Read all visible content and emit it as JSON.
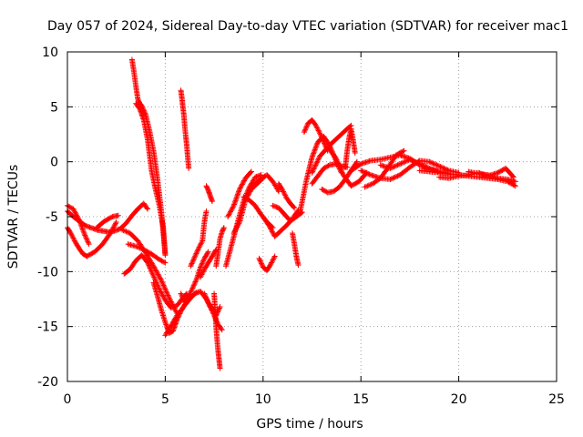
{
  "chart_data": {
    "type": "scatter",
    "title": "Day 057 of 2024, Sidereal Day-to-day VTEC variation (SDTVAR) for receiver mac1",
    "xlabel": "GPS time / hours",
    "ylabel": "SDTVAR / TECUs",
    "xlim": [
      0,
      25
    ],
    "ylim": [
      -20,
      10
    ],
    "xticks": [
      0,
      5,
      10,
      15,
      20,
      25
    ],
    "yticks": [
      -20,
      -15,
      -10,
      -5,
      0,
      5,
      10
    ],
    "xtick_labels": [
      "0",
      "5",
      "10",
      "15",
      "20",
      "25"
    ],
    "ytick_labels": [
      "-20",
      "-15",
      "-10",
      "-5",
      "0",
      "5",
      "10"
    ],
    "grid": true,
    "marker": "+",
    "series": [
      {
        "name": "SDTVAR",
        "color": "#ff0000",
        "tracks": [
          {
            "x": [
              0.0,
              0.3,
              0.6,
              0.9,
              1.2,
              1.5,
              1.8,
              2.1,
              2.4,
              2.7,
              3.0,
              3.3,
              3.6,
              3.9,
              4.1
            ],
            "y": [
              -4.5,
              -5.0,
              -5.4,
              -5.8,
              -6.0,
              -6.2,
              -6.3,
              -6.4,
              -6.3,
              -6.1,
              -5.6,
              -4.9,
              -4.3,
              -3.8,
              -4.3
            ]
          },
          {
            "x": [
              0.0,
              0.2,
              0.4,
              0.6,
              0.8,
              1.0
            ],
            "y": [
              -6.0,
              -6.6,
              -7.3,
              -7.9,
              -8.4,
              -8.6
            ]
          },
          {
            "x": [
              0.0,
              0.3,
              0.6,
              0.9,
              1.1
            ],
            "y": [
              -4.0,
              -4.3,
              -5.3,
              -6.7,
              -7.5
            ]
          },
          {
            "x": [
              1.0,
              1.4,
              1.8,
              2.2,
              2.5
            ],
            "y": [
              -8.6,
              -8.2,
              -7.5,
              -6.5,
              -5.5
            ]
          },
          {
            "x": [
              1.5,
              1.9,
              2.3,
              2.6
            ],
            "y": [
              -6.0,
              -5.4,
              -5.0,
              -4.9
            ]
          },
          {
            "x": [
              2.9,
              3.2,
              3.5,
              3.8,
              4.1,
              4.4,
              4.7,
              5.0,
              5.3,
              5.6,
              5.9,
              6.1
            ],
            "y": [
              -10.2,
              -9.8,
              -9.0,
              -8.5,
              -9.2,
              -10.4,
              -11.6,
              -12.6,
              -13.3,
              -13.1,
              -12.4,
              -12.0
            ]
          },
          {
            "x": [
              2.8,
              3.2,
              3.6,
              4.0,
              4.4,
              4.8,
              5.2,
              5.6
            ],
            "y": [
              -6.2,
              -6.5,
              -7.2,
              -8.3,
              -9.5,
              -10.8,
              -12.4,
              -13.8
            ]
          },
          {
            "x": [
              3.1,
              3.5,
              3.9,
              4.3,
              4.7,
              5.0
            ],
            "y": [
              -7.5,
              -7.7,
              -8.0,
              -8.4,
              -8.9,
              -9.2
            ]
          },
          {
            "x": [
              3.3,
              3.4,
              3.5,
              3.6,
              3.7,
              3.8,
              4.0,
              4.2,
              4.4,
              4.6,
              4.8,
              5.0
            ],
            "y": [
              9.3,
              8.2,
              6.9,
              5.7,
              5.3,
              5.1,
              4.3,
              2.8,
              1.0,
              -1.5,
              -4.5,
              -8.4
            ]
          },
          {
            "x": [
              3.5,
              3.7,
              3.9,
              4.1,
              4.3,
              4.5,
              4.7,
              4.9,
              5.0
            ],
            "y": [
              5.3,
              4.8,
              3.8,
              2.0,
              -0.8,
              -2.5,
              -4.0,
              -6.0,
              -8.5
            ]
          },
          {
            "x": [
              4.4,
              4.6,
              4.8,
              5.0,
              5.2,
              5.4,
              5.6,
              5.8,
              6.0,
              6.2,
              6.4,
              6.6
            ],
            "y": [
              -11.0,
              -12.2,
              -13.5,
              -14.6,
              -15.6,
              -15.4,
              -14.4,
              -13.6,
              -13.0,
              -12.6,
              -12.2,
              -11.9
            ]
          },
          {
            "x": [
              5.0,
              5.3,
              5.6,
              5.9,
              6.2,
              6.5,
              6.8,
              7.1,
              7.4,
              7.7,
              7.9
            ],
            "y": [
              -15.8,
              -14.9,
              -14.0,
              -13.3,
              -12.6,
              -12.0,
              -11.8,
              -12.5,
              -13.6,
              -14.8,
              -15.3
            ]
          },
          {
            "x": [
              5.8,
              5.85,
              5.9,
              5.95,
              6.0,
              6.05,
              6.1,
              6.15,
              6.2
            ],
            "y": [
              6.5,
              5.8,
              5.0,
              4.3,
              3.2,
              2.3,
              1.5,
              0.4,
              -0.6
            ]
          },
          {
            "x": [
              5.8,
              6.0,
              6.2,
              6.4,
              6.6,
              6.8,
              7.0,
              7.2
            ],
            "y": [
              -12.0,
              -12.8,
              -12.2,
              -11.5,
              -10.7,
              -9.6,
              -8.8,
              -8.2
            ]
          },
          {
            "x": [
              6.3,
              6.5,
              6.7,
              6.9,
              7.0,
              7.1
            ],
            "y": [
              -9.5,
              -8.7,
              -7.9,
              -7.2,
              -5.5,
              -4.5
            ]
          },
          {
            "x": [
              6.8,
              7.0,
              7.2,
              7.4,
              7.6
            ],
            "y": [
              -10.5,
              -9.8,
              -9.2,
              -8.6,
              -8.0
            ]
          },
          {
            "x": [
              7.0,
              7.2,
              7.4,
              7.6,
              7.8
            ],
            "y": [
              -12.0,
              -12.8,
              -13.4,
              -14.0,
              -13.2
            ]
          },
          {
            "x": [
              7.1,
              7.2,
              7.3,
              7.4
            ],
            "y": [
              -2.2,
              -2.6,
              -3.1,
              -3.6
            ]
          },
          {
            "x": [
              7.5,
              7.55,
              7.6,
              7.65,
              7.7,
              7.75,
              7.8
            ],
            "y": [
              -12.0,
              -13.5,
              -15.0,
              -16.2,
              -17.2,
              -18.0,
              -18.8
            ]
          },
          {
            "x": [
              7.6,
              7.7,
              7.8,
              7.9,
              8.0
            ],
            "y": [
              -9.5,
              -8.3,
              -7.0,
              -6.4,
              -6.0
            ]
          },
          {
            "x": [
              8.1,
              8.4,
              8.7,
              9.0,
              9.3,
              9.6,
              9.9
            ],
            "y": [
              -9.5,
              -7.5,
              -5.5,
              -3.6,
              -2.3,
              -1.4,
              -1.2
            ]
          },
          {
            "x": [
              8.2,
              8.5,
              8.8,
              9.1,
              9.4
            ],
            "y": [
              -5.0,
              -4.0,
              -2.5,
              -1.5,
              -0.9
            ]
          },
          {
            "x": [
              8.5,
              8.8,
              9.1,
              9.4,
              9.7,
              10.0
            ],
            "y": [
              -6.5,
              -5.5,
              -3.5,
              -2.5,
              -2.0,
              -1.5
            ]
          },
          {
            "x": [
              9.0,
              9.3,
              9.6,
              9.9,
              10.2,
              10.5
            ],
            "y": [
              -3.2,
              -3.5,
              -4.0,
              -4.8,
              -5.5,
              -6.0
            ]
          },
          {
            "x": [
              9.3,
              9.6,
              9.9,
              10.2,
              10.5,
              10.8
            ],
            "y": [
              -2.5,
              -2.0,
              -1.5,
              -1.2,
              -1.8,
              -2.7
            ]
          },
          {
            "x": [
              9.8,
              10.0,
              10.2,
              10.4,
              10.6
            ],
            "y": [
              -8.8,
              -9.6,
              -9.9,
              -9.3,
              -8.6
            ]
          },
          {
            "x": [
              10.0,
              10.3,
              10.6,
              10.9,
              11.2,
              11.5,
              11.8
            ],
            "y": [
              -5.0,
              -5.8,
              -6.8,
              -6.3,
              -5.8,
              -5.2,
              -4.4
            ]
          },
          {
            "x": [
              10.5,
              10.8,
              11.1,
              11.4,
              11.7,
              12.0
            ],
            "y": [
              -4.0,
              -4.2,
              -4.8,
              -5.4,
              -5.0,
              -4.6
            ]
          },
          {
            "x": [
              10.8,
              11.0,
              11.2,
              11.4,
              11.6
            ],
            "y": [
              -2.0,
              -2.6,
              -3.3,
              -3.8,
              -4.2
            ]
          },
          {
            "x": [
              11.5,
              11.6,
              11.7,
              11.8
            ],
            "y": [
              -6.5,
              -7.5,
              -8.6,
              -9.4
            ]
          },
          {
            "x": [
              11.9,
              12.2,
              12.5,
              12.8,
              13.1,
              13.4,
              13.7,
              14.0
            ],
            "y": [
              -4.5,
              -1.8,
              0.4,
              1.8,
              2.3,
              1.5,
              0.2,
              -1.0
            ]
          },
          {
            "x": [
              12.1,
              12.3,
              12.5,
              12.7,
              12.9,
              13.1,
              13.3
            ],
            "y": [
              2.7,
              3.5,
              3.8,
              3.3,
              2.6,
              1.8,
              1.0
            ]
          },
          {
            "x": [
              12.5,
              12.8,
              13.1,
              13.4,
              13.7,
              14.0,
              14.3
            ],
            "y": [
              -2.0,
              -1.3,
              -0.6,
              -0.3,
              -0.2,
              -0.4,
              -0.5
            ]
          },
          {
            "x": [
              12.5,
              12.9,
              13.3,
              13.7,
              14.1,
              14.5,
              14.9,
              15.3
            ],
            "y": [
              -1.0,
              0.5,
              1.3,
              0.4,
              -1.2,
              -2.2,
              -1.8,
              -1.0
            ]
          },
          {
            "x": [
              13.0,
              13.3,
              13.6,
              13.9,
              14.2,
              14.5,
              14.8
            ],
            "y": [
              -2.5,
              -2.8,
              -2.7,
              -2.3,
              -1.6,
              -0.8,
              0.0
            ]
          },
          {
            "x": [
              13.4,
              13.7,
              14.0,
              14.3,
              14.5
            ],
            "y": [
              1.5,
              2.0,
              2.5,
              3.0,
              3.3
            ]
          },
          {
            "x": [
              14.2,
              14.3,
              14.4,
              14.5,
              14.6,
              14.7
            ],
            "y": [
              -0.5,
              1.0,
              2.2,
              3.0,
              2.0,
              0.8
            ]
          },
          {
            "x": [
              14.5,
              15.0,
              15.5,
              16.0,
              16.5,
              17.0,
              17.5,
              18.0,
              18.5,
              19.0
            ],
            "y": [
              -0.8,
              -0.2,
              0.1,
              0.2,
              0.4,
              0.6,
              0.3,
              -0.3,
              -0.7,
              -0.9
            ]
          },
          {
            "x": [
              15.0,
              15.5,
              16.0,
              16.5,
              17.0,
              17.5,
              18.0,
              18.5,
              19.0,
              19.5,
              20.0
            ],
            "y": [
              -0.8,
              -1.2,
              -1.5,
              -1.6,
              -1.2,
              -0.5,
              0.1,
              0.0,
              -0.4,
              -0.8,
              -1.0
            ]
          },
          {
            "x": [
              15.2,
              15.6,
              16.0,
              16.4,
              16.8,
              17.2
            ],
            "y": [
              -2.3,
              -2.0,
              -1.5,
              -0.5,
              0.6,
              1.0
            ]
          },
          {
            "x": [
              16.0,
              16.5,
              17.0,
              17.5,
              18.0,
              18.5,
              19.0,
              19.5,
              20.0
            ],
            "y": [
              -0.3,
              -0.6,
              -0.2,
              0.2,
              -0.2,
              -0.6,
              -0.9,
              -1.1,
              -1.2
            ]
          },
          {
            "x": [
              18.0,
              18.5,
              19.0,
              19.5,
              20.0,
              20.5,
              21.0,
              21.5,
              22.0,
              22.5,
              22.9
            ],
            "y": [
              -0.8,
              -0.9,
              -1.0,
              -1.1,
              -1.2,
              -1.3,
              -1.4,
              -1.5,
              -1.6,
              -1.8,
              -2.2
            ]
          },
          {
            "x": [
              19.0,
              19.5,
              20.0,
              20.5,
              21.0,
              21.5,
              22.0,
              22.4,
              22.8
            ],
            "y": [
              -1.4,
              -1.5,
              -1.3,
              -1.2,
              -1.0,
              -1.3,
              -1.0,
              -0.6,
              -1.4
            ]
          },
          {
            "x": [
              20.5,
              21.0,
              21.5,
              22.0,
              22.5,
              22.9
            ],
            "y": [
              -0.9,
              -1.1,
              -1.2,
              -1.5,
              -1.6,
              -1.8
            ]
          }
        ]
      }
    ]
  }
}
